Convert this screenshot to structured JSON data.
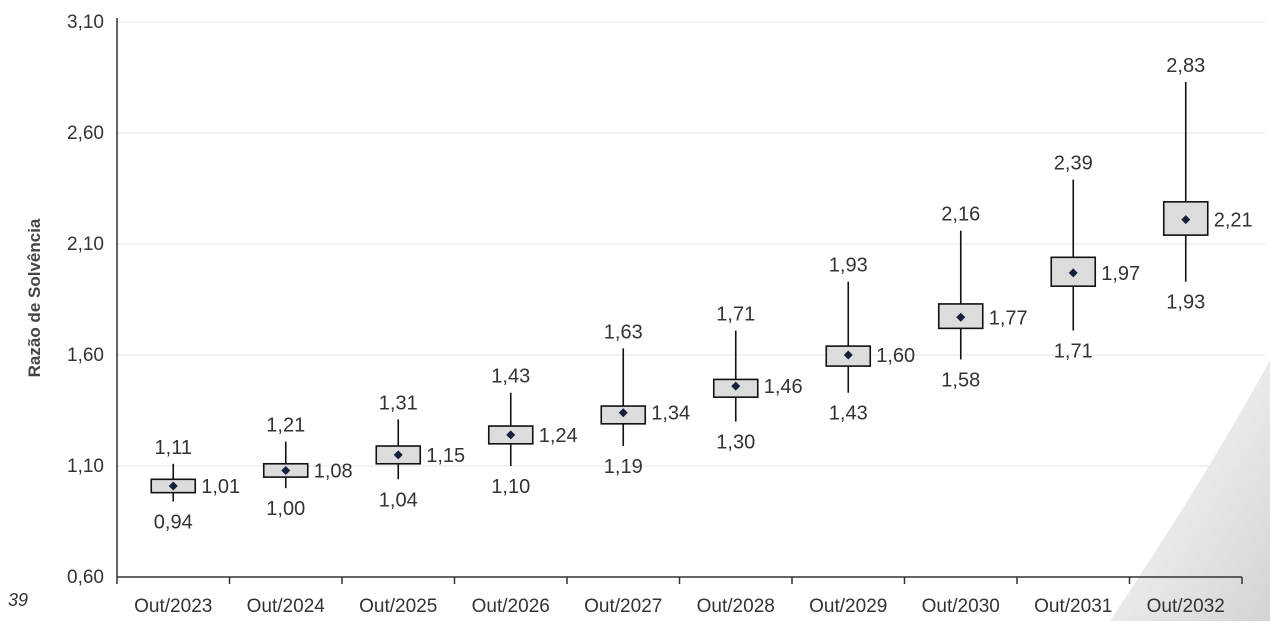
{
  "page_number": "39",
  "chart_data": {
    "type": "box",
    "ylabel": "Razão de Solvência",
    "ylim": [
      0.6,
      3.1
    ],
    "yticks": [
      "0,60",
      "1,10",
      "1,60",
      "2,10",
      "2,60",
      "3,10"
    ],
    "ytick_values": [
      0.6,
      1.1,
      1.6,
      2.1,
      2.6,
      3.1
    ],
    "categories": [
      "Out/2023",
      "Out/2024",
      "Out/2025",
      "Out/2026",
      "Out/2027",
      "Out/2028",
      "Out/2029",
      "Out/2030",
      "Out/2031",
      "Out/2032"
    ],
    "series": [
      {
        "category": "Out/2023",
        "min": 0.94,
        "q1": 0.98,
        "mean": 1.01,
        "q3": 1.04,
        "max": 1.11,
        "min_label": "0,94",
        "mean_label": "1,01",
        "max_label": "1,11"
      },
      {
        "category": "Out/2024",
        "min": 1.0,
        "q1": 1.05,
        "mean": 1.08,
        "q3": 1.11,
        "max": 1.21,
        "min_label": "1,00",
        "mean_label": "1,08",
        "max_label": "1,21"
      },
      {
        "category": "Out/2025",
        "min": 1.04,
        "q1": 1.11,
        "mean": 1.15,
        "q3": 1.19,
        "max": 1.31,
        "min_label": "1,04",
        "mean_label": "1,15",
        "max_label": "1,31"
      },
      {
        "category": "Out/2026",
        "min": 1.1,
        "q1": 1.2,
        "mean": 1.24,
        "q3": 1.28,
        "max": 1.43,
        "min_label": "1,10",
        "mean_label": "1,24",
        "max_label": "1,43"
      },
      {
        "category": "Out/2027",
        "min": 1.19,
        "q1": 1.29,
        "mean": 1.34,
        "q3": 1.37,
        "max": 1.63,
        "min_label": "1,19",
        "mean_label": "1,34",
        "max_label": "1,63"
      },
      {
        "category": "Out/2028",
        "min": 1.3,
        "q1": 1.41,
        "mean": 1.46,
        "q3": 1.49,
        "max": 1.71,
        "min_label": "1,30",
        "mean_label": "1,46",
        "max_label": "1,71"
      },
      {
        "category": "Out/2029",
        "min": 1.43,
        "q1": 1.55,
        "mean": 1.6,
        "q3": 1.64,
        "max": 1.93,
        "min_label": "1,43",
        "mean_label": "1,60",
        "max_label": "1,93"
      },
      {
        "category": "Out/2030",
        "min": 1.58,
        "q1": 1.72,
        "mean": 1.77,
        "q3": 1.83,
        "max": 2.16,
        "min_label": "1,58",
        "mean_label": "1,77",
        "max_label": "2,16"
      },
      {
        "category": "Out/2031",
        "min": 1.71,
        "q1": 1.91,
        "mean": 1.97,
        "q3": 2.04,
        "max": 2.39,
        "min_label": "1,71",
        "mean_label": "1,97",
        "max_label": "2,39"
      },
      {
        "category": "Out/2032",
        "min": 1.93,
        "q1": 2.14,
        "mean": 2.21,
        "q3": 2.29,
        "max": 2.83,
        "min_label": "1,93",
        "mean_label": "2,21",
        "max_label": "2,83"
      }
    ],
    "grid": true,
    "colors": {
      "box_fill": "#dcdcdc",
      "box_stroke": "#111111",
      "marker": "#14213d",
      "grid": "#e6e6e6",
      "axis": "#333333",
      "text": "#333333"
    }
  }
}
